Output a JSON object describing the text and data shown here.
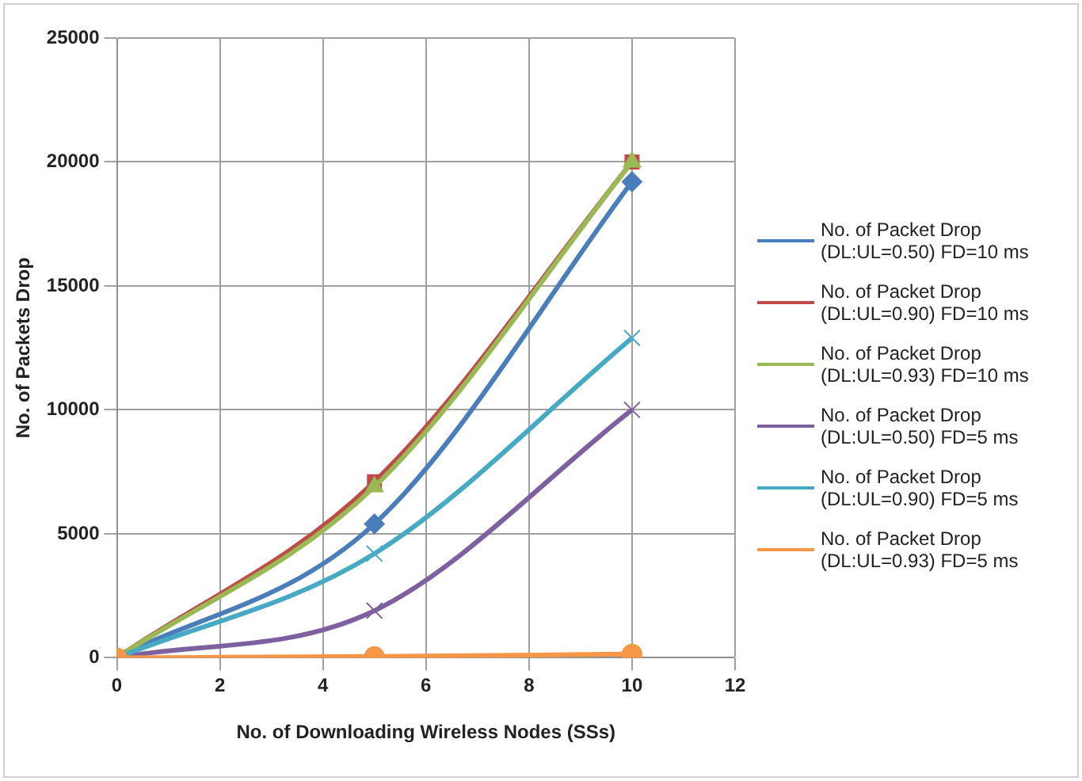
{
  "chart_data": {
    "type": "line",
    "xlabel": "No. of Downloading Wireless Nodes (SSs)",
    "ylabel": "No. of Packets Drop",
    "x": [
      0,
      5,
      10
    ],
    "xlim": [
      0,
      12
    ],
    "xticks": [
      0,
      2,
      4,
      6,
      8,
      10,
      12
    ],
    "ylim": [
      0,
      25000
    ],
    "yticks": [
      0,
      5000,
      10000,
      15000,
      20000,
      25000
    ],
    "grid": true,
    "legend": "right",
    "series": [
      {
        "name": "No. of Packet Drop (DL:UL=0.50) FD=10 ms",
        "color": "#4a7ebb",
        "marker": "diamond",
        "values": [
          0,
          5400,
          19200
        ]
      },
      {
        "name": "No. of Packet Drop (DL:UL=0.90) FD=10 ms",
        "color": "#be4b48",
        "marker": "square",
        "values": [
          0,
          7100,
          20000
        ]
      },
      {
        "name": "No. of Packet Drop (DL:UL=0.93) FD=10 ms",
        "color": "#98b954",
        "marker": "triangle",
        "values": [
          0,
          6900,
          20000
        ]
      },
      {
        "name": "No. of Packet Drop (DL:UL=0.50)  FD=5 ms",
        "color": "#7d60a0",
        "marker": "cross",
        "values": [
          0,
          1900,
          10000
        ]
      },
      {
        "name": "No. of Packet Drop (DL:UL=0.90)  FD=5 ms",
        "color": "#46aac5",
        "marker": "cross",
        "values": [
          0,
          4200,
          12900
        ]
      },
      {
        "name": "No. of Packet Drop (DL:UL=0.93)  FD=5 ms",
        "color": "#f79646",
        "marker": "circle",
        "values": [
          0,
          50,
          150
        ]
      }
    ]
  }
}
